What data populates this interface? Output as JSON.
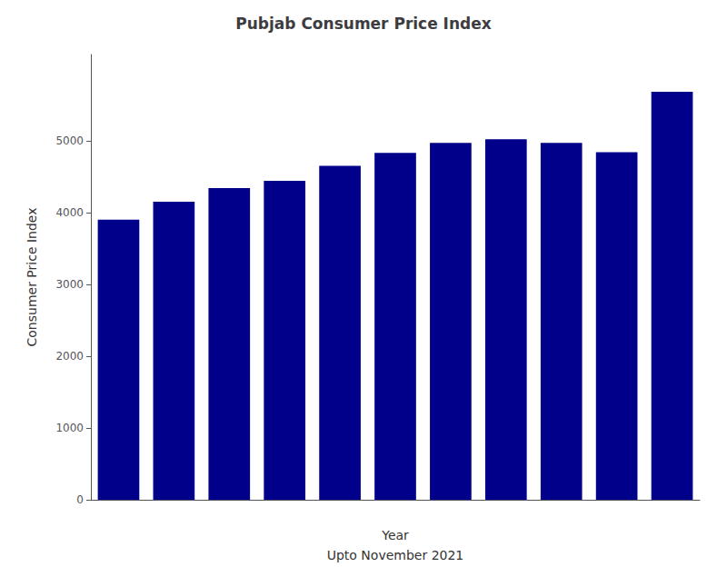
{
  "chart_data": {
    "type": "bar",
    "title": "Pubjab Consumer Price Index",
    "xlabel": "Year\nUpto November 2021",
    "ylabel": "Consumer Price Index",
    "categories": [
      null,
      null,
      null,
      null,
      null,
      null,
      null,
      null,
      null,
      null,
      null
    ],
    "values": [
      3900,
      4150,
      4340,
      4440,
      4650,
      4830,
      4970,
      5020,
      4970,
      4840,
      5680
    ],
    "color": "#00008B",
    "ylim": [
      0,
      6200
    ],
    "yticks": [
      0,
      1000,
      2000,
      3000,
      4000,
      5000
    ],
    "grid": false,
    "tick_labels": "y"
  }
}
